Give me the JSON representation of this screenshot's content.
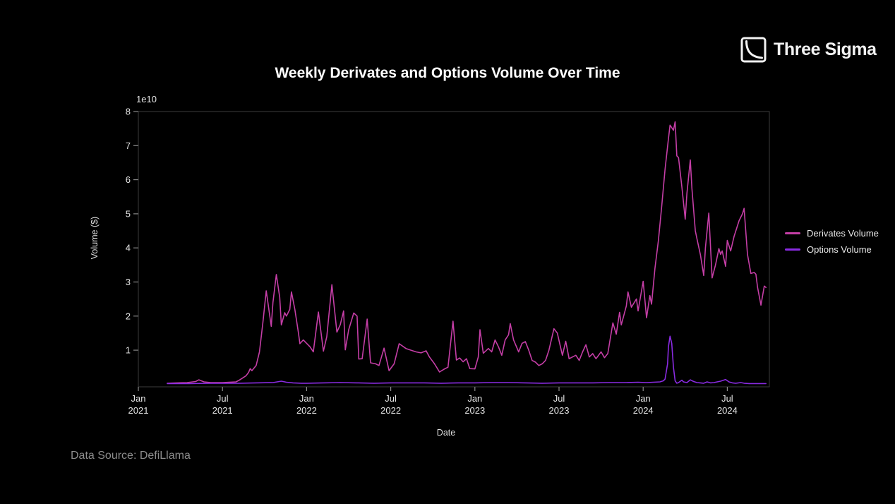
{
  "logo": {
    "text": "Three Sigma",
    "icon": "three-sigma-square-curve"
  },
  "footer": {
    "source_note": "Data Source: DefiLlama"
  },
  "colors": {
    "background": "#000000",
    "derivates_line": "#c43ea6",
    "options_line": "#8a2be2",
    "spine": "#3c3c3c",
    "tick_mark": "#8a8a8a",
    "tick_label": "#e6e6e6",
    "source_text": "#8d8d8d"
  },
  "chart_data": {
    "type": "line",
    "title": "Weekly Derivates and Options Volume Over Time",
    "xlabel": "Date",
    "ylabel": "Volume ($)",
    "offset_label": "1e10",
    "x_unit": "decimal_year",
    "xlim": [
      2021.0,
      2024.75
    ],
    "ylim": [
      -0.075,
      8.0
    ],
    "grid": false,
    "legend_position": "right-outside",
    "y_ticks": [
      1,
      2,
      3,
      4,
      5,
      6,
      7,
      8
    ],
    "x_ticks": [
      {
        "v": 2021.0,
        "label": [
          "Jan",
          "2021"
        ]
      },
      {
        "v": 2021.5,
        "label": [
          "Jul",
          "2021"
        ]
      },
      {
        "v": 2022.0,
        "label": [
          "Jan",
          "2022"
        ]
      },
      {
        "v": 2022.5,
        "label": [
          "Jul",
          "2022"
        ]
      },
      {
        "v": 2023.0,
        "label": [
          "Jan",
          "2023"
        ]
      },
      {
        "v": 2023.5,
        "label": [
          "Jul",
          "2023"
        ]
      },
      {
        "v": 2024.0,
        "label": [
          "Jan",
          "2024"
        ]
      },
      {
        "v": 2024.5,
        "label": [
          "Jul",
          "2024"
        ]
      }
    ],
    "series": [
      {
        "name": "Derivates Volume",
        "color": "#c43ea6",
        "unit": "1e10 $ per week",
        "points": [
          [
            2021.172,
            0.03
          ],
          [
            2021.23,
            0.04
          ],
          [
            2021.29,
            0.05
          ],
          [
            2021.34,
            0.08
          ],
          [
            2021.36,
            0.13
          ],
          [
            2021.39,
            0.07
          ],
          [
            2021.43,
            0.05
          ],
          [
            2021.5,
            0.05
          ],
          [
            2021.54,
            0.06
          ],
          [
            2021.58,
            0.07
          ],
          [
            2021.6,
            0.12
          ],
          [
            2021.64,
            0.25
          ],
          [
            2021.655,
            0.35
          ],
          [
            2021.665,
            0.46
          ],
          [
            2021.675,
            0.4
          ],
          [
            2021.7,
            0.55
          ],
          [
            2021.72,
            0.95
          ],
          [
            2021.74,
            1.8
          ],
          [
            2021.76,
            2.74
          ],
          [
            2021.79,
            1.7
          ],
          [
            2021.8,
            2.4
          ],
          [
            2021.82,
            3.22
          ],
          [
            2021.84,
            2.55
          ],
          [
            2021.85,
            1.74
          ],
          [
            2021.87,
            2.1
          ],
          [
            2021.88,
            2.0
          ],
          [
            2021.9,
            2.2
          ],
          [
            2021.91,
            2.71
          ],
          [
            2021.93,
            2.2
          ],
          [
            2021.95,
            1.55
          ],
          [
            2021.96,
            1.19
          ],
          [
            2021.98,
            1.3
          ],
          [
            2022.0,
            1.2
          ],
          [
            2022.02,
            1.1
          ],
          [
            2022.04,
            0.95
          ],
          [
            2022.07,
            2.12
          ],
          [
            2022.1,
            0.97
          ],
          [
            2022.12,
            1.4
          ],
          [
            2022.15,
            2.92
          ],
          [
            2022.18,
            1.53
          ],
          [
            2022.2,
            1.75
          ],
          [
            2022.22,
            2.15
          ],
          [
            2022.23,
            1.01
          ],
          [
            2022.25,
            1.6
          ],
          [
            2022.28,
            2.09
          ],
          [
            2022.3,
            2.0
          ],
          [
            2022.31,
            0.74
          ],
          [
            2022.33,
            0.75
          ],
          [
            2022.36,
            1.91
          ],
          [
            2022.38,
            0.63
          ],
          [
            2022.41,
            0.6
          ],
          [
            2022.43,
            0.55
          ],
          [
            2022.46,
            1.06
          ],
          [
            2022.49,
            0.4
          ],
          [
            2022.52,
            0.6
          ],
          [
            2022.55,
            1.19
          ],
          [
            2022.59,
            1.05
          ],
          [
            2022.62,
            1.0
          ],
          [
            2022.65,
            0.95
          ],
          [
            2022.68,
            0.92
          ],
          [
            2022.71,
            0.98
          ],
          [
            2022.73,
            0.8
          ],
          [
            2022.76,
            0.6
          ],
          [
            2022.79,
            0.36
          ],
          [
            2022.82,
            0.45
          ],
          [
            2022.84,
            0.5
          ],
          [
            2022.87,
            1.85
          ],
          [
            2022.89,
            0.71
          ],
          [
            2022.91,
            0.77
          ],
          [
            2022.93,
            0.66
          ],
          [
            2022.95,
            0.75
          ],
          [
            2022.97,
            0.46
          ],
          [
            2023.0,
            0.45
          ],
          [
            2023.02,
            0.8
          ],
          [
            2023.03,
            1.6
          ],
          [
            2023.05,
            0.91
          ],
          [
            2023.08,
            1.05
          ],
          [
            2023.1,
            0.95
          ],
          [
            2023.12,
            1.3
          ],
          [
            2023.14,
            1.1
          ],
          [
            2023.16,
            0.85
          ],
          [
            2023.18,
            1.3
          ],
          [
            2023.2,
            1.45
          ],
          [
            2023.21,
            1.78
          ],
          [
            2023.23,
            1.3
          ],
          [
            2023.26,
            0.95
          ],
          [
            2023.28,
            1.2
          ],
          [
            2023.3,
            1.25
          ],
          [
            2023.32,
            1.0
          ],
          [
            2023.34,
            0.7
          ],
          [
            2023.36,
            0.65
          ],
          [
            2023.38,
            0.55
          ],
          [
            2023.4,
            0.6
          ],
          [
            2023.42,
            0.7
          ],
          [
            2023.44,
            1.0
          ],
          [
            2023.47,
            1.63
          ],
          [
            2023.49,
            1.5
          ],
          [
            2023.52,
            0.85
          ],
          [
            2023.54,
            1.26
          ],
          [
            2023.56,
            0.75
          ],
          [
            2023.58,
            0.8
          ],
          [
            2023.6,
            0.85
          ],
          [
            2023.62,
            0.7
          ],
          [
            2023.64,
            0.95
          ],
          [
            2023.66,
            1.16
          ],
          [
            2023.68,
            0.8
          ],
          [
            2023.7,
            0.9
          ],
          [
            2023.72,
            0.75
          ],
          [
            2023.75,
            0.95
          ],
          [
            2023.77,
            0.78
          ],
          [
            2023.79,
            0.9
          ],
          [
            2023.82,
            1.8
          ],
          [
            2023.84,
            1.47
          ],
          [
            2023.86,
            2.11
          ],
          [
            2023.87,
            1.74
          ],
          [
            2023.9,
            2.3
          ],
          [
            2023.91,
            2.71
          ],
          [
            2023.93,
            2.26
          ],
          [
            2023.96,
            2.5
          ],
          [
            2023.97,
            2.15
          ],
          [
            2024.0,
            3.02
          ],
          [
            2024.02,
            1.95
          ],
          [
            2024.04,
            2.6
          ],
          [
            2024.05,
            2.35
          ],
          [
            2024.07,
            3.4
          ],
          [
            2024.09,
            4.2
          ],
          [
            2024.11,
            5.2
          ],
          [
            2024.13,
            6.3
          ],
          [
            2024.15,
            7.2
          ],
          [
            2024.16,
            7.6
          ],
          [
            2024.18,
            7.45
          ],
          [
            2024.19,
            7.7
          ],
          [
            2024.2,
            6.7
          ],
          [
            2024.21,
            6.65
          ],
          [
            2024.23,
            5.8
          ],
          [
            2024.25,
            4.84
          ],
          [
            2024.26,
            5.6
          ],
          [
            2024.28,
            6.58
          ],
          [
            2024.29,
            5.74
          ],
          [
            2024.31,
            4.5
          ],
          [
            2024.32,
            4.26
          ],
          [
            2024.34,
            3.8
          ],
          [
            2024.36,
            3.19
          ],
          [
            2024.37,
            4.0
          ],
          [
            2024.39,
            5.02
          ],
          [
            2024.41,
            3.12
          ],
          [
            2024.43,
            3.5
          ],
          [
            2024.45,
            3.98
          ],
          [
            2024.46,
            3.81
          ],
          [
            2024.47,
            3.91
          ],
          [
            2024.49,
            3.46
          ],
          [
            2024.5,
            4.22
          ],
          [
            2024.52,
            3.91
          ],
          [
            2024.54,
            4.33
          ],
          [
            2024.57,
            4.8
          ],
          [
            2024.59,
            5.0
          ],
          [
            2024.6,
            5.16
          ],
          [
            2024.62,
            3.81
          ],
          [
            2024.64,
            3.25
          ],
          [
            2024.66,
            3.28
          ],
          [
            2024.67,
            3.23
          ],
          [
            2024.68,
            2.84
          ],
          [
            2024.7,
            2.32
          ],
          [
            2024.72,
            2.88
          ],
          [
            2024.73,
            2.84
          ]
        ]
      },
      {
        "name": "Options Volume",
        "color": "#8a2be2",
        "unit": "1e10 $ per week",
        "points": [
          [
            2021.172,
            0.02
          ],
          [
            2021.3,
            0.02
          ],
          [
            2021.43,
            0.03
          ],
          [
            2021.5,
            0.03
          ],
          [
            2021.6,
            0.03
          ],
          [
            2021.7,
            0.04
          ],
          [
            2021.8,
            0.05
          ],
          [
            2021.85,
            0.09
          ],
          [
            2021.88,
            0.06
          ],
          [
            2021.92,
            0.04
          ],
          [
            2021.97,
            0.03
          ],
          [
            2022.0,
            0.03
          ],
          [
            2022.1,
            0.04
          ],
          [
            2022.2,
            0.05
          ],
          [
            2022.3,
            0.04
          ],
          [
            2022.4,
            0.03
          ],
          [
            2022.5,
            0.04
          ],
          [
            2022.6,
            0.04
          ],
          [
            2022.7,
            0.04
          ],
          [
            2022.8,
            0.03
          ],
          [
            2022.9,
            0.04
          ],
          [
            2023.0,
            0.04
          ],
          [
            2023.1,
            0.05
          ],
          [
            2023.2,
            0.05
          ],
          [
            2023.3,
            0.04
          ],
          [
            2023.4,
            0.03
          ],
          [
            2023.5,
            0.04
          ],
          [
            2023.6,
            0.04
          ],
          [
            2023.7,
            0.04
          ],
          [
            2023.8,
            0.05
          ],
          [
            2023.9,
            0.05
          ],
          [
            2023.97,
            0.06
          ],
          [
            2024.02,
            0.05
          ],
          [
            2024.06,
            0.06
          ],
          [
            2024.1,
            0.07
          ],
          [
            2024.12,
            0.1
          ],
          [
            2024.13,
            0.15
          ],
          [
            2024.145,
            0.6
          ],
          [
            2024.15,
            1.1
          ],
          [
            2024.16,
            1.41
          ],
          [
            2024.17,
            1.2
          ],
          [
            2024.18,
            0.5
          ],
          [
            2024.19,
            0.1
          ],
          [
            2024.2,
            0.03
          ],
          [
            2024.21,
            0.05
          ],
          [
            2024.23,
            0.12
          ],
          [
            2024.24,
            0.07
          ],
          [
            2024.26,
            0.05
          ],
          [
            2024.28,
            0.13
          ],
          [
            2024.3,
            0.08
          ],
          [
            2024.32,
            0.05
          ],
          [
            2024.34,
            0.04
          ],
          [
            2024.36,
            0.03
          ],
          [
            2024.38,
            0.07
          ],
          [
            2024.4,
            0.04
          ],
          [
            2024.42,
            0.05
          ],
          [
            2024.44,
            0.07
          ],
          [
            2024.46,
            0.09
          ],
          [
            2024.49,
            0.14
          ],
          [
            2024.51,
            0.07
          ],
          [
            2024.53,
            0.04
          ],
          [
            2024.55,
            0.03
          ],
          [
            2024.58,
            0.05
          ],
          [
            2024.6,
            0.03
          ],
          [
            2024.63,
            0.02
          ],
          [
            2024.67,
            0.02
          ],
          [
            2024.7,
            0.02
          ],
          [
            2024.73,
            0.02
          ]
        ]
      }
    ]
  }
}
